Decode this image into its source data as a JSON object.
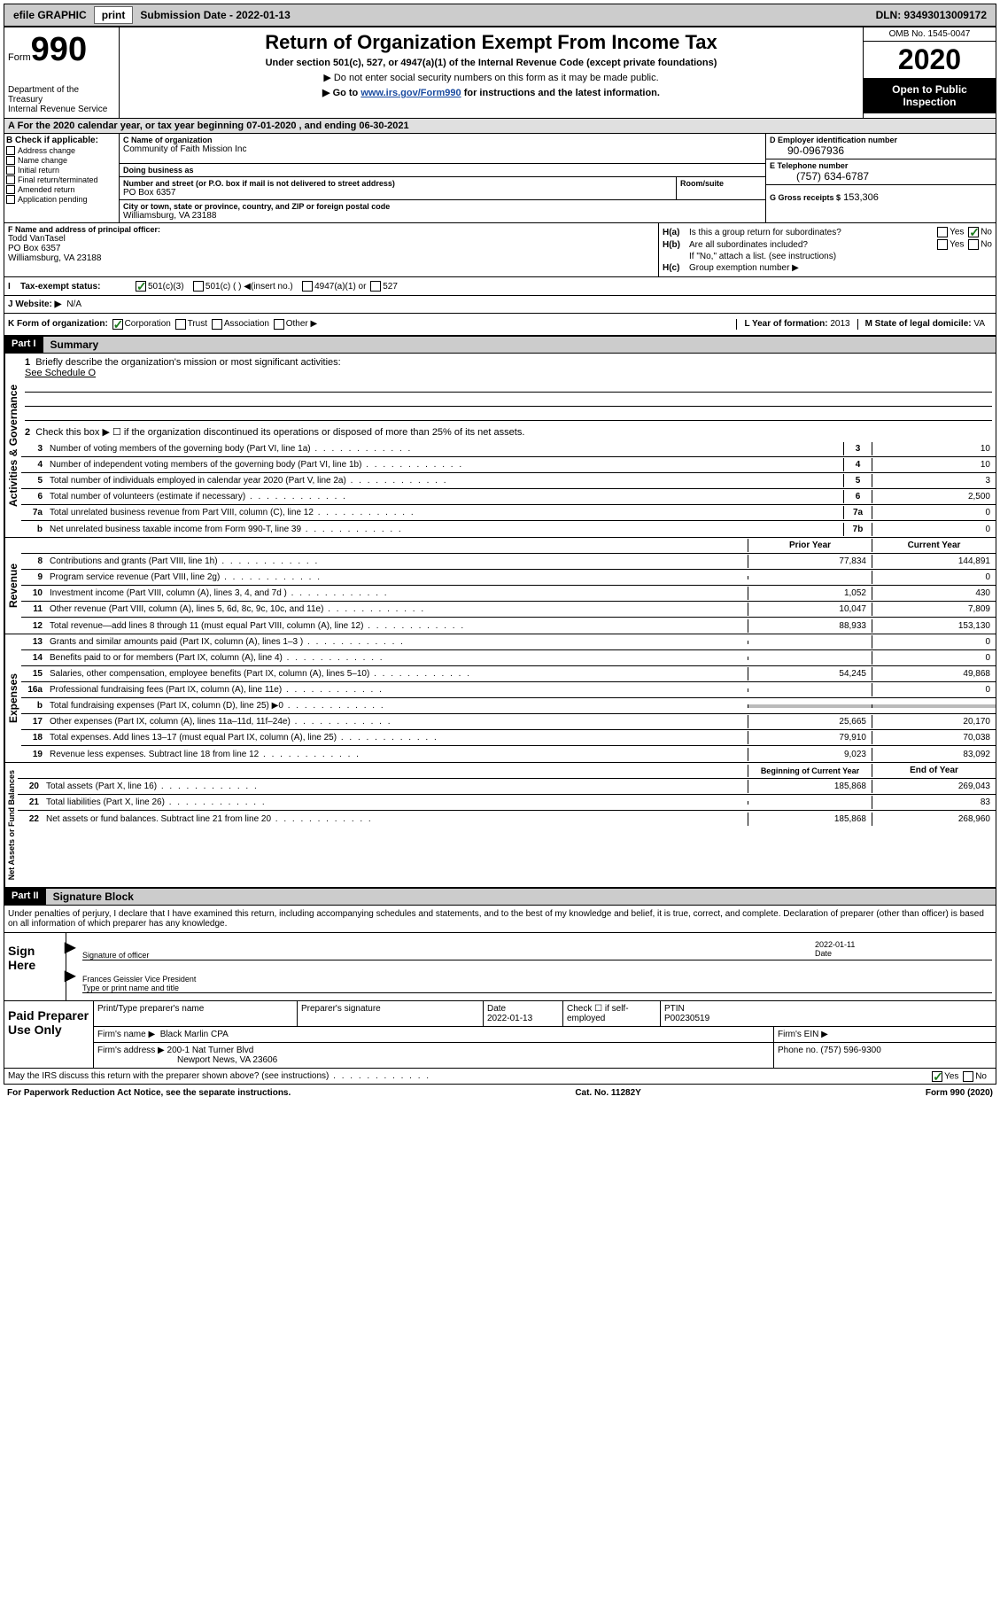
{
  "topbar": {
    "efile": "efile GRAPHIC",
    "print": "print",
    "submission": "Submission Date - 2022-01-13",
    "dln": "DLN: 93493013009172"
  },
  "header": {
    "form_label": "Form",
    "form_number": "990",
    "dept": "Department of the Treasury\nInternal Revenue Service",
    "title": "Return of Organization Exempt From Income Tax",
    "sub1": "Under section 501(c), 527, or 4947(a)(1) of the Internal Revenue Code (except private foundations)",
    "sub2": "▶ Do not enter social security numbers on this form as it may be made public.",
    "sub3_pre": "▶ Go to ",
    "sub3_link": "www.irs.gov/Form990",
    "sub3_post": " for instructions and the latest information.",
    "omb": "OMB No. 1545-0047",
    "year": "2020",
    "inspection": "Open to Public Inspection"
  },
  "period": "For the 2020 calendar year, or tax year beginning 07-01-2020    , and ending 06-30-2021",
  "sectionB": {
    "label": "B Check if applicable:",
    "items": [
      "Address change",
      "Name change",
      "Initial return",
      "Final return/terminated",
      "Amended return",
      "Application pending"
    ]
  },
  "sectionC": {
    "name_label": "C Name of organization",
    "name": "Community of Faith Mission Inc",
    "dba_label": "Doing business as",
    "dba": "",
    "street_label": "Number and street (or P.O. box if mail is not delivered to street address)",
    "street": "PO Box 6357",
    "room_label": "Room/suite",
    "city_label": "City or town, state or province, country, and ZIP or foreign postal code",
    "city": "Williamsburg, VA  23188"
  },
  "sectionD": {
    "ein_label": "D Employer identification number",
    "ein": "90-0967936",
    "phone_label": "E Telephone number",
    "phone": "(757) 634-6787",
    "gross_label": "G Gross receipts $",
    "gross": "153,306"
  },
  "sectionF": {
    "label": "F  Name and address of principal officer:",
    "name": "Todd VanTasel",
    "addr1": "PO Box 6357",
    "addr2": "Williamsburg, VA  23188"
  },
  "sectionH": {
    "a_label": "H(a)",
    "a_text": "Is this a group return for subordinates?",
    "b_label": "H(b)",
    "b_text": "Are all subordinates included?",
    "note": "If \"No,\" attach a list. (see instructions)",
    "c_label": "H(c)",
    "c_text": "Group exemption number ▶"
  },
  "taxStatus": {
    "label": "Tax-exempt status:",
    "opt1": "501(c)(3)",
    "opt2": "501(c) (  ) ◀(insert no.)",
    "opt3": "4947(a)(1) or",
    "opt4": "527"
  },
  "website": {
    "label": "J   Website: ▶",
    "value": "N/A"
  },
  "sectionK": {
    "label": "K Form of organization:",
    "corp": "Corporation",
    "trust": "Trust",
    "assoc": "Association",
    "other": "Other ▶",
    "l_label": "L Year of formation:",
    "l_val": "2013",
    "m_label": "M State of legal domicile:",
    "m_val": "VA"
  },
  "part1": {
    "hdr": "Part I",
    "title": "Summary",
    "vert_ag": "Activities & Governance",
    "vert_rev": "Revenue",
    "vert_exp": "Expenses",
    "vert_na": "Net Assets or Fund Balances",
    "line1": "Briefly describe the organization's mission or most significant activities:",
    "line1_val": "See Schedule O",
    "line2": "Check this box ▶ ☐  if the organization discontinued its operations or disposed of more than 25% of its net assets.",
    "lines": [
      {
        "n": "3",
        "t": "Number of voting members of the governing body (Part VI, line 1a)",
        "b": "3",
        "v": "10"
      },
      {
        "n": "4",
        "t": "Number of independent voting members of the governing body (Part VI, line 1b)",
        "b": "4",
        "v": "10"
      },
      {
        "n": "5",
        "t": "Total number of individuals employed in calendar year 2020 (Part V, line 2a)",
        "b": "5",
        "v": "3"
      },
      {
        "n": "6",
        "t": "Total number of volunteers (estimate if necessary)",
        "b": "6",
        "v": "2,500"
      },
      {
        "n": "7a",
        "t": "Total unrelated business revenue from Part VIII, column (C), line 12",
        "b": "7a",
        "v": "0"
      },
      {
        "n": "b",
        "t": "Net unrelated business taxable income from Form 990-T, line 39",
        "b": "7b",
        "v": "0"
      }
    ],
    "prior_hdr": "Prior Year",
    "current_hdr": "Current Year",
    "rev_lines": [
      {
        "n": "8",
        "t": "Contributions and grants (Part VIII, line 1h)",
        "py": "77,834",
        "cy": "144,891"
      },
      {
        "n": "9",
        "t": "Program service revenue (Part VIII, line 2g)",
        "py": "",
        "cy": "0"
      },
      {
        "n": "10",
        "t": "Investment income (Part VIII, column (A), lines 3, 4, and 7d )",
        "py": "1,052",
        "cy": "430"
      },
      {
        "n": "11",
        "t": "Other revenue (Part VIII, column (A), lines 5, 6d, 8c, 9c, 10c, and 11e)",
        "py": "10,047",
        "cy": "7,809"
      },
      {
        "n": "12",
        "t": "Total revenue—add lines 8 through 11 (must equal Part VIII, column (A), line 12)",
        "py": "88,933",
        "cy": "153,130"
      }
    ],
    "exp_lines": [
      {
        "n": "13",
        "t": "Grants and similar amounts paid (Part IX, column (A), lines 1–3 )",
        "py": "",
        "cy": "0"
      },
      {
        "n": "14",
        "t": "Benefits paid to or for members (Part IX, column (A), line 4)",
        "py": "",
        "cy": "0"
      },
      {
        "n": "15",
        "t": "Salaries, other compensation, employee benefits (Part IX, column (A), lines 5–10)",
        "py": "54,245",
        "cy": "49,868"
      },
      {
        "n": "16a",
        "t": "Professional fundraising fees (Part IX, column (A), line 11e)",
        "py": "",
        "cy": "0"
      },
      {
        "n": "b",
        "t": "Total fundraising expenses (Part IX, column (D), line 25) ▶0",
        "py": "shaded",
        "cy": "shaded"
      },
      {
        "n": "17",
        "t": "Other expenses (Part IX, column (A), lines 11a–11d, 11f–24e)",
        "py": "25,665",
        "cy": "20,170"
      },
      {
        "n": "18",
        "t": "Total expenses. Add lines 13–17 (must equal Part IX, column (A), line 25)",
        "py": "79,910",
        "cy": "70,038"
      },
      {
        "n": "19",
        "t": "Revenue less expenses. Subtract line 18 from line 12",
        "py": "9,023",
        "cy": "83,092"
      }
    ],
    "na_hdr_py": "Beginning of Current Year",
    "na_hdr_cy": "End of Year",
    "na_lines": [
      {
        "n": "20",
        "t": "Total assets (Part X, line 16)",
        "py": "185,868",
        "cy": "269,043"
      },
      {
        "n": "21",
        "t": "Total liabilities (Part X, line 26)",
        "py": "",
        "cy": "83"
      },
      {
        "n": "22",
        "t": "Net assets or fund balances. Subtract line 21 from line 20",
        "py": "185,868",
        "cy": "268,960"
      }
    ]
  },
  "part2": {
    "hdr": "Part II",
    "title": "Signature Block",
    "decl": "Under penalties of perjury, I declare that I have examined this return, including accompanying schedules and statements, and to the best of my knowledge and belief, it is true, correct, and complete. Declaration of preparer (other than officer) is based on all information of which preparer has any knowledge.",
    "sign_here": "Sign Here",
    "sig_officer": "Signature of officer",
    "date_lbl": "Date",
    "sig_date": "2022-01-11",
    "sig_name": "Frances Geissler  Vice President",
    "sig_type": "Type or print name and title",
    "paid_lbl": "Paid Preparer Use Only",
    "prep_name_lbl": "Print/Type preparer's name",
    "prep_sig_lbl": "Preparer's signature",
    "prep_date_lbl": "Date",
    "prep_date": "2022-01-13",
    "prep_check": "Check ☐ if self-employed",
    "ptin_lbl": "PTIN",
    "ptin": "P00230519",
    "firm_name_lbl": "Firm's name    ▶",
    "firm_name": "Black Marlin CPA",
    "firm_ein_lbl": "Firm's EIN ▶",
    "firm_addr_lbl": "Firm's address ▶",
    "firm_addr1": "200-1 Nat Turner Blvd",
    "firm_addr2": "Newport News, VA  23606",
    "firm_phone_lbl": "Phone no.",
    "firm_phone": "(757) 596-9300",
    "discuss": "May the IRS discuss this return with the preparer shown above? (see instructions)"
  },
  "footer": {
    "paperwork": "For Paperwork Reduction Act Notice, see the separate instructions.",
    "cat": "Cat. No. 11282Y",
    "form": "Form 990 (2020)"
  }
}
